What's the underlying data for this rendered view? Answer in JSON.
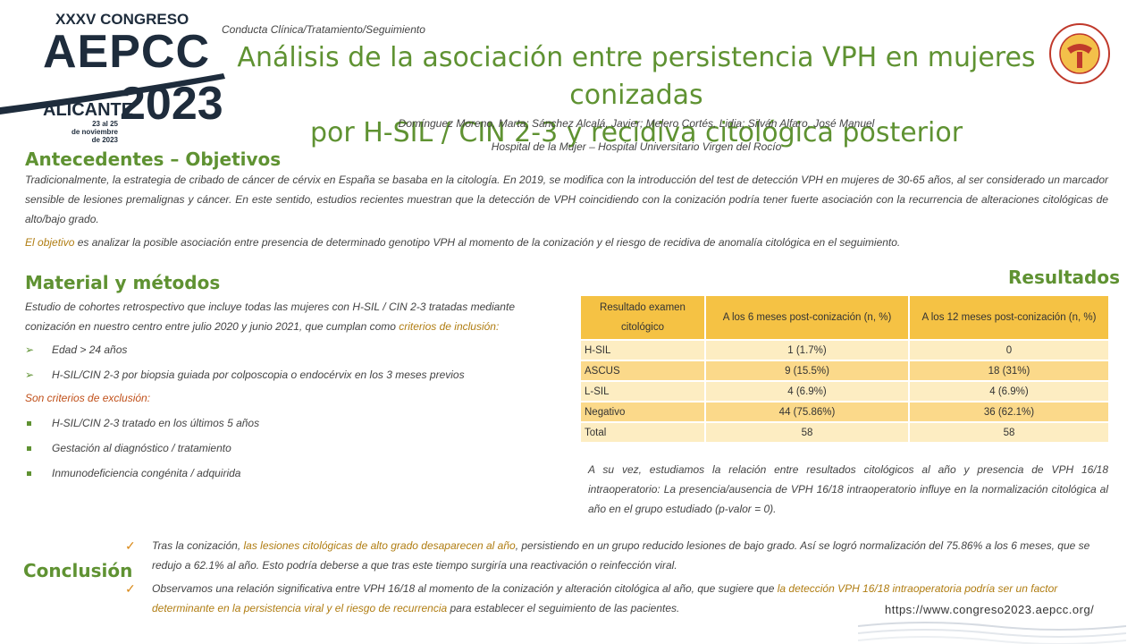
{
  "logo": {
    "edition": "XXXV CONGRESO",
    "name": "AEPCC",
    "city": "ALICANTE",
    "year": "2023",
    "dates": [
      "23 al 25",
      "de noviembre",
      "de 2023"
    ]
  },
  "header": {
    "category": "Conducta Clínica/Tratamiento/Seguimiento",
    "title": [
      "Análisis de la asociación entre persistencia VPH en mujeres conizadas",
      "por H-SIL / CIN 2-3 y recidiva citológica posterior"
    ],
    "authors": "Domínguez Moreno, Marta; Sánchez Alcalá, Javier; Melero Cortés, Lidia; Silván Alfaro, José Manuel",
    "affiliation": "Hospital de la Mujer – Hospital Universitario Virgen del Rocío"
  },
  "background": {
    "heading": "Antecedentes – Objetivos",
    "paragraphs": [
      [
        {
          "text": "Tradicionalmente, la estrategia de cribado de cáncer de cérvix en España se basaba en la citología. En 2019, se modifica con la introducción del test de detección VPH en mujeres de 30-65 años, al ser considerado un marcador sensible de lesiones premalignas y cáncer. En este sentido, estudios recientes muestran que la detección de VPH coincidiendo con la conización podría tener fuerte asociación con la recurrencia de alteraciones citológicas de alto/bajo grado."
        }
      ],
      [
        {
          "text": "El ",
          "color": "#b07d12"
        },
        {
          "text": "objetivo",
          "color": "#b07d12"
        },
        {
          "text": " es analizar la posible asociación entre presencia de determinado genotipo VPH al momento de la conización y el riesgo de recidiva de anomalía citológica en el seguimiento."
        }
      ]
    ]
  },
  "methods": {
    "heading": "Material y métodos",
    "intro": [
      {
        "text": "Estudio de cohortes retrospectivo que incluye todas las mujeres con H-SIL / CIN 2-3 tratadas mediante conización en nuestro centro entre julio 2020 y junio 2021, que cumplan como "
      },
      {
        "text": "criterios de inclusión:",
        "color": "#b07d12"
      }
    ],
    "inclusion": [
      "Edad > 24 años",
      "H-SIL/CIN 2-3 por biopsia guiada por colposcopia o endocérvix en los 3 meses previos"
    ],
    "exclusion_heading": [
      {
        "text": "Son criterios de exclusión:",
        "color": "#c0501a"
      }
    ],
    "exclusion": [
      "H-SIL/CIN 2-3 tratado en los últimos 5 años",
      "Gestación al diagnóstico / tratamiento",
      "Inmunodeficiencia congénita / adquirida"
    ]
  },
  "results": {
    "heading": "Resultados",
    "table": {
      "header": [
        "Resultado examen citológico",
        "A los 6 meses post-conización (n, %)",
        "A los 12 meses post-conización (n, %)"
      ],
      "rows": [
        [
          "H-SIL",
          "1 (1.7%)",
          "0"
        ],
        [
          "ASCUS",
          "9 (15.5%)",
          "18 (31%)"
        ],
        [
          "L-SIL",
          "4 (6.9%)",
          "4 (6.9%)"
        ],
        [
          "Negativo",
          "44 (75.86%)",
          "36 (62.1%)"
        ],
        [
          "Total",
          "58",
          "58"
        ]
      ]
    },
    "text": "A su vez, estudiamos la relación entre resultados citológicos al año y presencia de VPH 16/18 intraoperatorio: La presencia/ausencia de VPH 16/18 intraoperatorio influye en la normalización citológica al año en el grupo estudiado (p-valor = 0)."
  },
  "conclusion": {
    "heading": "Conclusión",
    "items": [
      [
        {
          "text": "Tras la conización, "
        },
        {
          "text": "las lesiones citológicas de alto grado desaparecen al año",
          "color": "#b07d12"
        },
        {
          "text": ", persistiendo en un grupo reducido lesiones de bajo grado. Así se logró normalización del 75.86% a los 6 meses, que se redujo a 62.1% al año. Esto podría deberse a que tras este tiempo surgiría una reactivación o reinfección viral."
        }
      ],
      [
        {
          "text": "Observamos una relación significativa entre VPH 16/18 al momento de la conización y alteración citológica al año, que sugiere que "
        },
        {
          "text": "la detección VPH 16/18 intraoperatoria podría ser un factor determinante en la persistencia viral y el riesgo de recurrencia",
          "color": "#b07d12"
        },
        {
          "text": " para establecer el seguimiento de las pacientes."
        }
      ]
    ]
  },
  "footer": {
    "url": "https://www.congreso2023.aepcc.org/"
  }
}
